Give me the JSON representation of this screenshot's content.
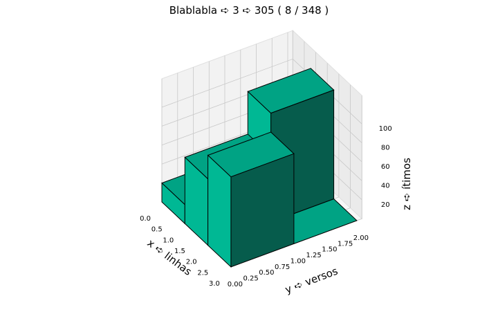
{
  "chart_data": {
    "type": "bar3d",
    "title": "Blablabla ➪ 3 ➪ 305 ( 8 / 348 )",
    "xlabel": "x ➪ linhas",
    "ylabel": "y ➪ versos",
    "zlabel": "z ➪ ítimos",
    "x_ticks": [
      "0.0",
      "0.5",
      "1.0",
      "1.5",
      "2.0",
      "2.5",
      "3.0"
    ],
    "y_ticks": [
      "0.00",
      "0.25",
      "0.50",
      "0.75",
      "1.00",
      "1.25",
      "1.50",
      "1.75",
      "2.00"
    ],
    "z_ticks": [
      "20",
      "40",
      "60",
      "80",
      "100"
    ],
    "xlim": [
      0,
      3
    ],
    "ylim": [
      0,
      2
    ],
    "zlim": [
      0,
      115
    ],
    "bar_color": "#00b894",
    "edge_color": "#000000",
    "grid": true,
    "bars": [
      {
        "x": 0,
        "y": 0,
        "z": 20
      },
      {
        "x": 0,
        "y": 1,
        "z": 20
      },
      {
        "x": 1,
        "y": 0,
        "z": 70
      },
      {
        "x": 1,
        "y": 1,
        "z": 115
      },
      {
        "x": 2,
        "y": 0,
        "z": 95
      },
      {
        "x": 2,
        "y": 1,
        "z": 0
      }
    ]
  }
}
